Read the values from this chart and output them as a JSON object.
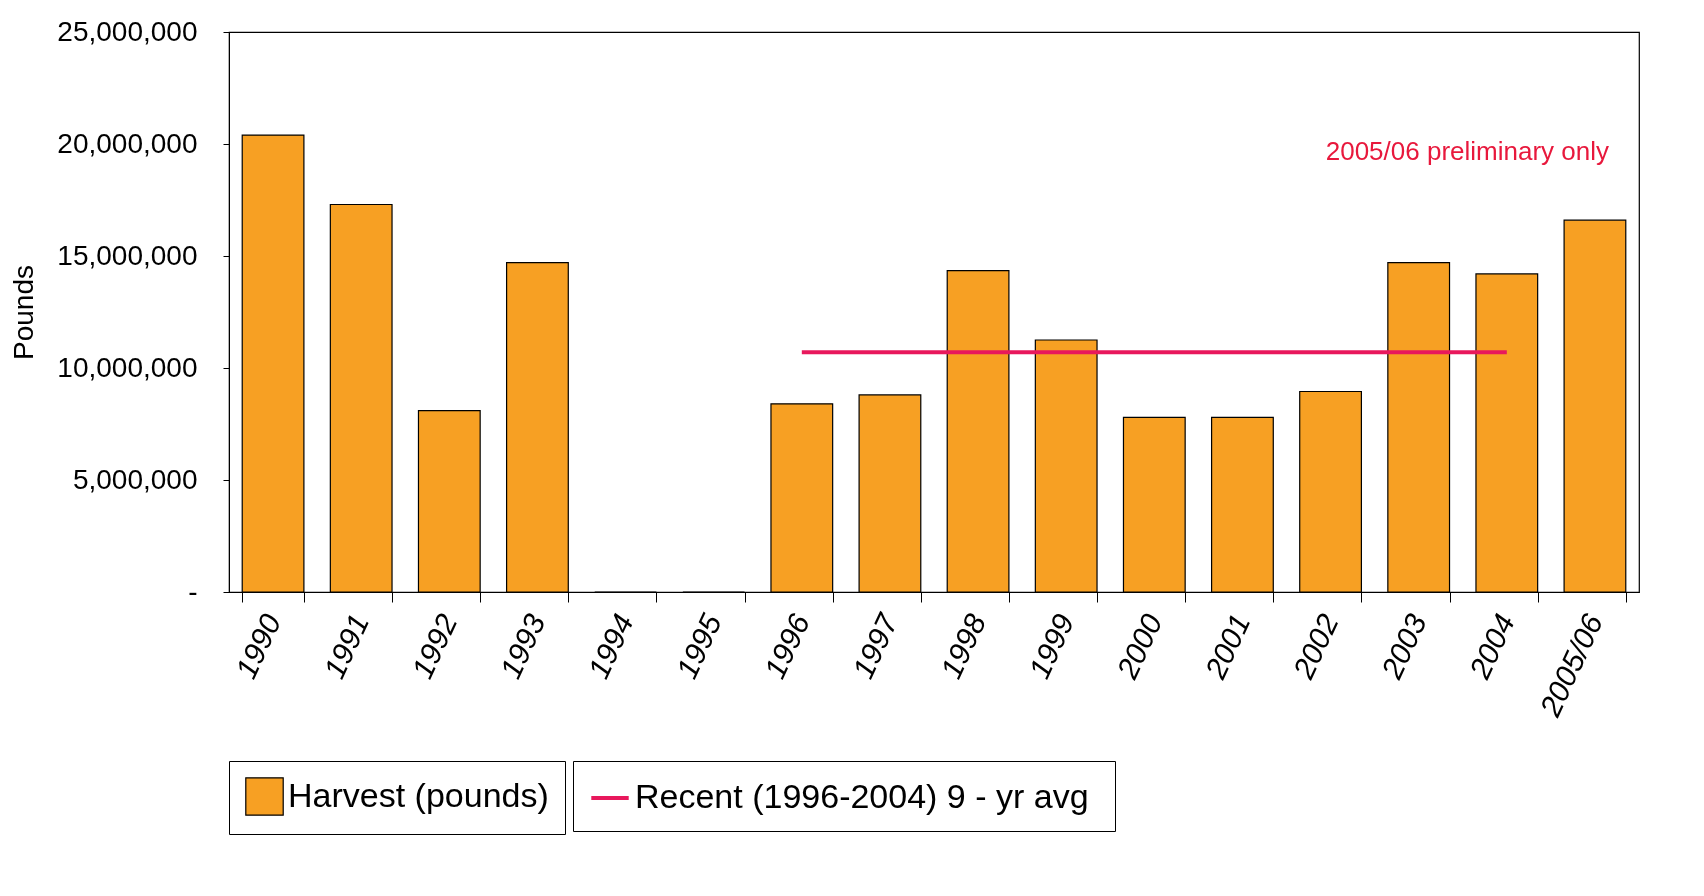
{
  "chart_data": {
    "type": "bar",
    "ylabel": "Pounds",
    "categories": [
      "1990",
      "1991",
      "1992",
      "1993",
      "1994",
      "1995",
      "1996",
      "1997",
      "1998",
      "1999",
      "2000",
      "2001",
      "2002",
      "2003",
      "2004",
      "2005/06"
    ],
    "series": [
      {
        "name": "Harvest (pounds)",
        "color": "#f7a023",
        "values": [
          20400000,
          17300000,
          8100000,
          14700000,
          0,
          0,
          8400000,
          8800000,
          14350000,
          11250000,
          7800000,
          7800000,
          8950000,
          14700000,
          14200000,
          16600000
        ]
      },
      {
        "name": "Recent (1996-2004)  9 - yr avg",
        "type": "line",
        "color": "#e8185c",
        "values": [
          null,
          null,
          null,
          null,
          null,
          null,
          10700000,
          10700000,
          10700000,
          10700000,
          10700000,
          10700000,
          10700000,
          10700000,
          10700000,
          null
        ]
      }
    ],
    "ylim": [
      0,
      25000000
    ],
    "yticks": [
      {
        "value": 0,
        "label": "-"
      },
      {
        "value": 5000000,
        "label": "5,000,000"
      },
      {
        "value": 10000000,
        "label": "10,000,000"
      },
      {
        "value": 15000000,
        "label": "15,000,000"
      },
      {
        "value": 20000000,
        "label": "20,000,000"
      },
      {
        "value": 25000000,
        "label": "25,000,000"
      }
    ],
    "annotations": [
      "2005/06 preliminary only"
    ],
    "legend": "bottom",
    "grid": false
  }
}
